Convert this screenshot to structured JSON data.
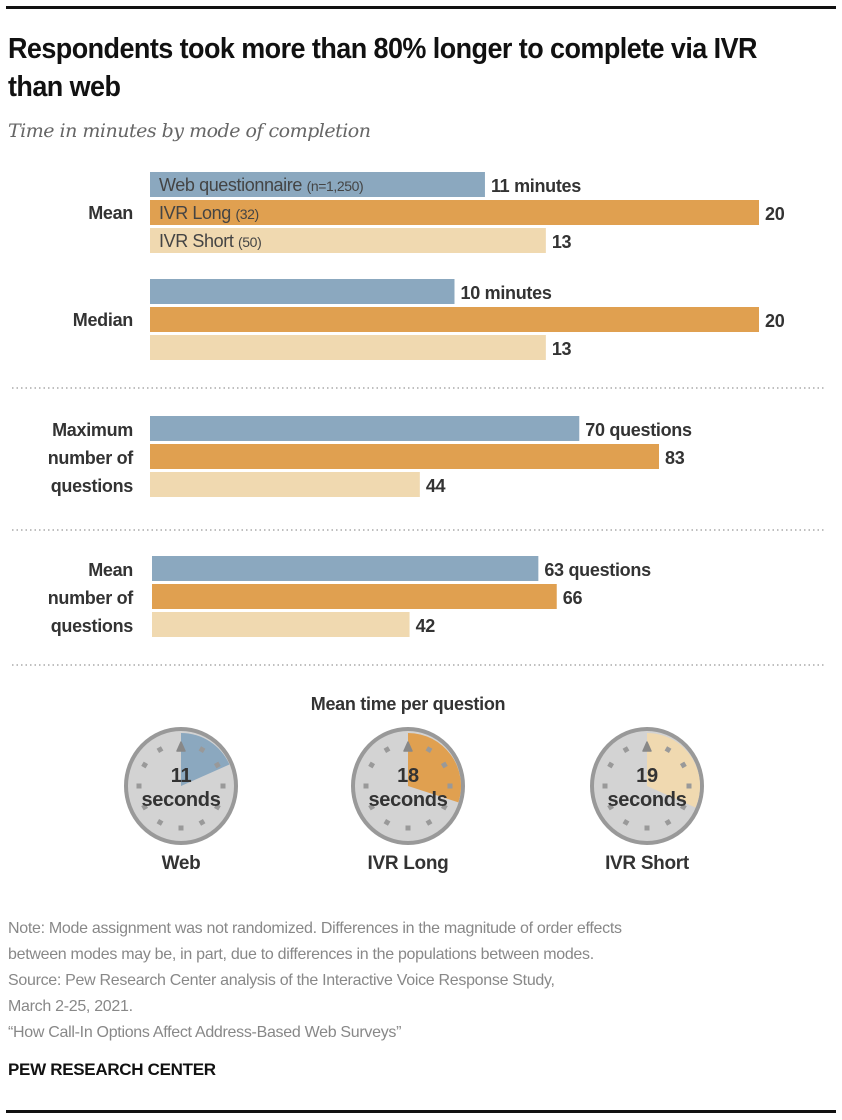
{
  "header": {
    "title": "Respondents took more than 80% longer to complete via IVR than web",
    "subtitle": "Time in minutes by mode of completion"
  },
  "colors": {
    "web": "#8ba8bf",
    "ivr_long": "#e0a050",
    "ivr_short": "#f0d9b0",
    "text_dark": "#333333",
    "note_gray": "#888888",
    "clock_face": "#d3d3d3",
    "clock_rim": "#999999"
  },
  "chart_data": [
    {
      "type": "bar",
      "orientation": "horizontal",
      "title": "Time in minutes by mode of completion",
      "unit": "minutes",
      "categories": [
        "Mean",
        "Median"
      ],
      "series": [
        {
          "name": "Web questionnaire",
          "n_label": "(n=1,250)",
          "values": [
            11,
            10
          ]
        },
        {
          "name": "IVR Long",
          "n_label": "(32)",
          "values": [
            20,
            20
          ]
        },
        {
          "name": "IVR Short",
          "n_label": "(50)",
          "values": [
            13,
            13
          ]
        }
      ],
      "value_labels": [
        [
          "11 minutes",
          "10 minutes"
        ],
        [
          "20",
          "20"
        ],
        [
          "13",
          "13"
        ]
      ],
      "xlim": [
        0,
        20
      ]
    },
    {
      "type": "bar",
      "orientation": "horizontal",
      "unit": "questions",
      "categories": [
        "Maximum number of questions",
        "Mean number of questions"
      ],
      "series": [
        {
          "name": "Web questionnaire",
          "values": [
            70,
            63
          ]
        },
        {
          "name": "IVR Long",
          "values": [
            83,
            66
          ]
        },
        {
          "name": "IVR Short",
          "values": [
            44,
            42
          ]
        }
      ],
      "value_labels": [
        [
          "70 questions",
          "63 questions"
        ],
        [
          "83",
          "66"
        ],
        [
          "44",
          "42"
        ]
      ],
      "xlim": [
        0,
        83
      ]
    },
    {
      "type": "pie",
      "title": "Mean time per question",
      "unit": "seconds",
      "full_circle_value": 60,
      "items": [
        {
          "label": "Web",
          "value": 11,
          "value_text": "11",
          "unit_text": "seconds"
        },
        {
          "label": "IVR Long",
          "value": 18,
          "value_text": "18",
          "unit_text": "seconds"
        },
        {
          "label": "IVR Short",
          "value": 19,
          "value_text": "19",
          "unit_text": "seconds"
        }
      ]
    }
  ],
  "group_labels": {
    "mean": [
      "Mean"
    ],
    "median": [
      "Median"
    ],
    "max_questions": [
      "Maximum",
      "number of",
      "questions"
    ],
    "mean_questions": [
      "Mean",
      "number of",
      "questions"
    ]
  },
  "footer": {
    "note_lines": [
      "Note: Mode assignment was not randomized. Differences in the magnitude of order effects",
      "between modes may be, in part, due to differences in the populations between modes.",
      "Source: Pew Research Center analysis of the Interactive Voice Response Study,",
      "March 2-25, 2021.",
      "“How Call-In Options Affect Address-Based Web Surveys”"
    ],
    "brand": "PEW RESEARCH CENTER"
  }
}
